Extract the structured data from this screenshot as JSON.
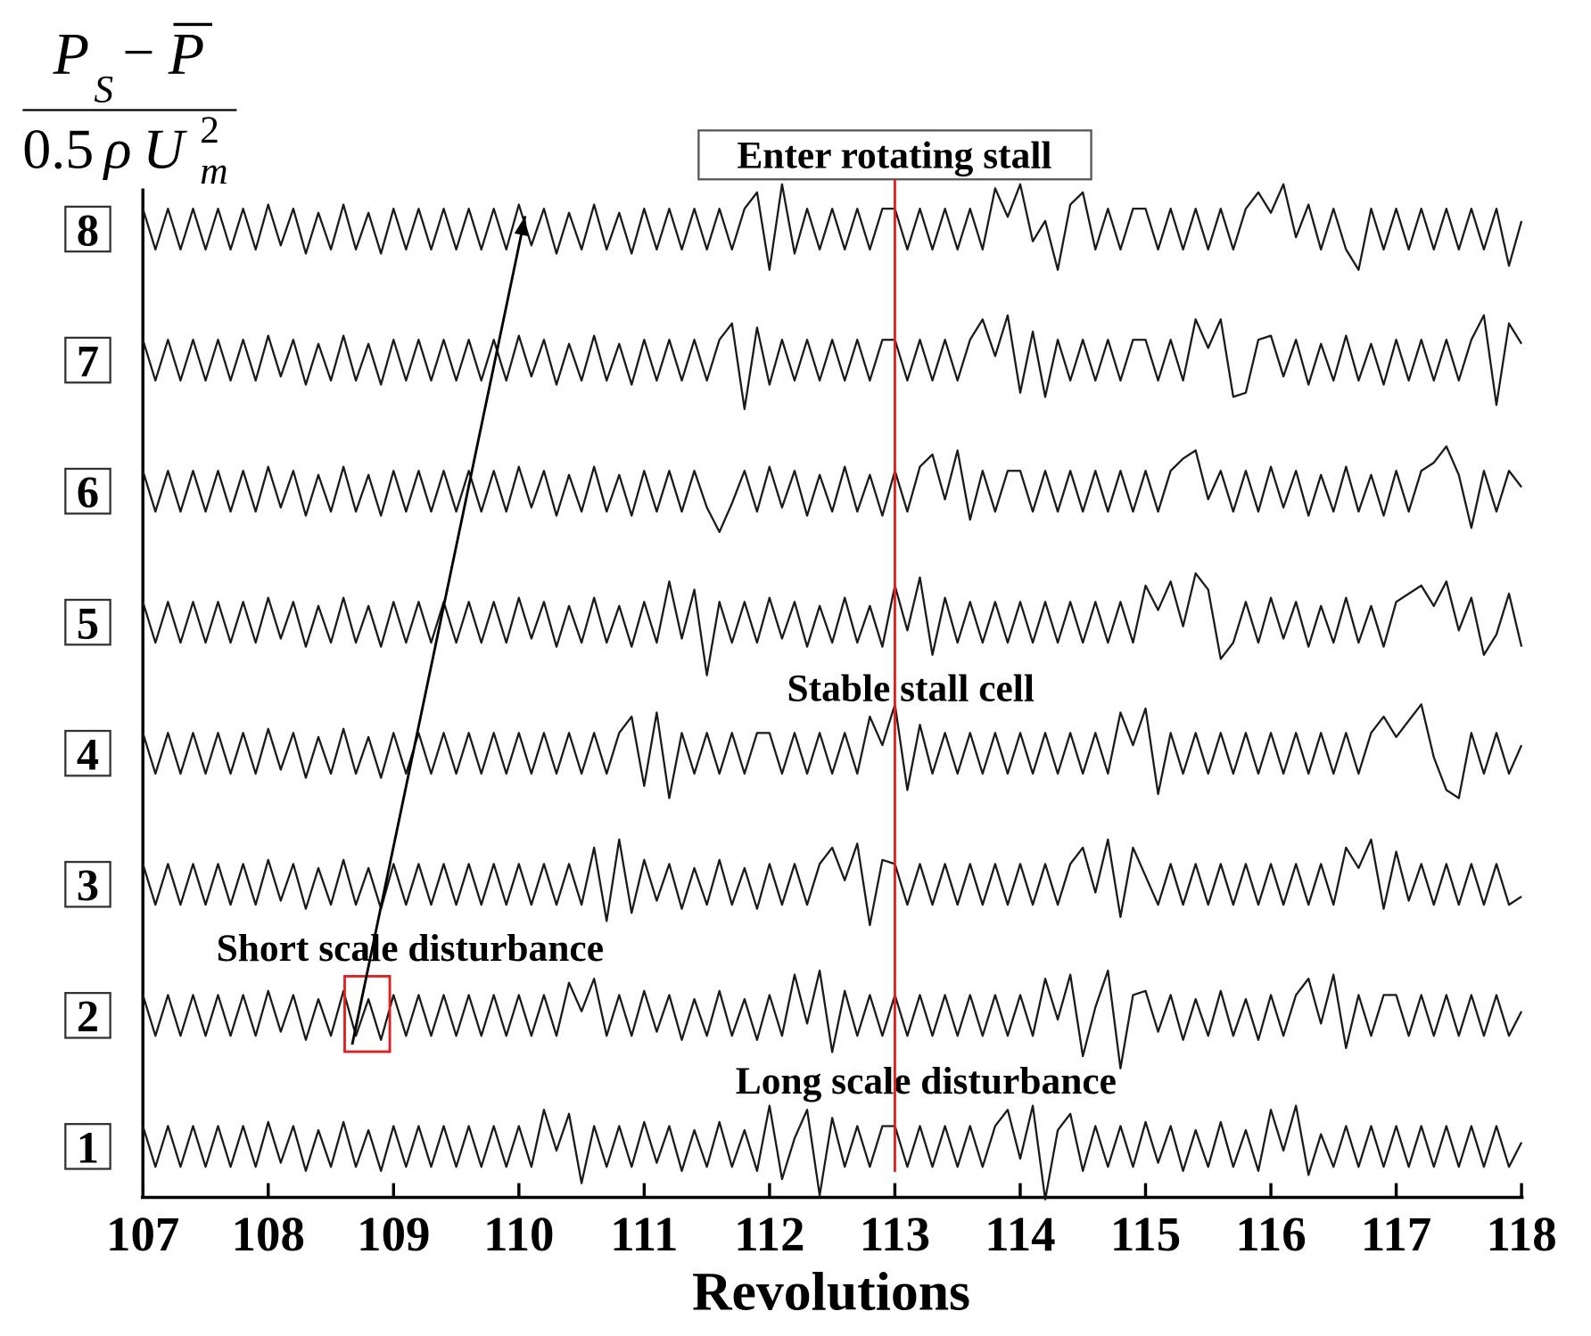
{
  "chart_data": {
    "type": "line",
    "ylabel": {
      "num": [
        "P",
        "S",
        "−",
        "P"
      ],
      "den": [
        "0.5",
        "ρ",
        "U",
        "2",
        "m"
      ]
    },
    "xlabel": "Revolutions",
    "xlim": [
      107,
      118
    ],
    "xticks": [
      107,
      108,
      109,
      110,
      111,
      112,
      113,
      114,
      115,
      116,
      117,
      118
    ],
    "x": [
      107,
      107.1,
      107.2,
      107.3,
      107.4,
      107.5,
      107.6,
      107.7,
      107.8,
      107.9,
      108,
      108.1,
      108.2,
      108.3,
      108.4,
      108.5,
      108.6,
      108.7,
      108.8,
      108.9,
      109,
      109.1,
      109.2,
      109.3,
      109.4,
      109.5,
      109.6,
      109.7,
      109.8,
      109.9,
      110,
      110.1,
      110.2,
      110.3,
      110.4,
      110.5,
      110.6,
      110.7,
      110.8,
      110.9,
      111,
      111.1,
      111.2,
      111.3,
      111.4,
      111.5,
      111.6,
      111.7,
      111.8,
      111.9,
      112,
      112.1,
      112.2,
      112.3,
      112.4,
      112.5,
      112.6,
      112.7,
      112.8,
      112.9,
      113,
      113.1,
      113.2,
      113.3,
      113.4,
      113.5,
      113.6,
      113.7,
      113.8,
      113.9,
      114,
      114.1,
      114.2,
      114.3,
      114.4,
      114.5,
      114.6,
      114.7,
      114.8,
      114.9,
      115,
      115.1,
      115.2,
      115.3,
      115.4,
      115.5,
      115.6,
      115.7,
      115.8,
      115.9,
      116,
      116.1,
      116.2,
      116.3,
      116.4,
      116.5,
      116.6,
      116.7,
      116.8,
      116.9,
      117,
      117.1,
      117.2,
      117.3,
      117.4,
      117.5,
      117.6,
      117.7,
      117.8,
      117.9,
      118
    ],
    "series": [
      {
        "name": "1",
        "color": "#1a1a1a",
        "values": [
          0.5,
          -0.5,
          0.5,
          -0.5,
          0.5,
          -0.5,
          0.5,
          -0.5,
          0.5,
          -0.5,
          0.6,
          -0.4,
          0.5,
          -0.6,
          0.4,
          -0.5,
          0.6,
          -0.5,
          0.4,
          -0.6,
          0.5,
          -0.5,
          0.5,
          -0.5,
          0.5,
          -0.5,
          0.5,
          -0.5,
          0.5,
          -0.5,
          0.5,
          -0.5,
          0.9,
          -0.1,
          0.8,
          -0.9,
          0.5,
          -0.5,
          0.5,
          -0.5,
          0.6,
          -0.4,
          0.5,
          -0.6,
          0.4,
          -0.5,
          0.6,
          -0.5,
          0.4,
          -0.6,
          1.0,
          -0.8,
          0.2,
          0.9,
          -1.2,
          0.7,
          -0.5,
          0.5,
          -0.5,
          0.5,
          0.5,
          -0.5,
          0.5,
          -0.5,
          0.5,
          -0.5,
          0.5,
          -0.5,
          0.5,
          0.9,
          -0.3,
          1.0,
          -1.3,
          0.4,
          0.8,
          -0.6,
          0.5,
          -0.5,
          0.5,
          -0.5,
          0.6,
          -0.4,
          0.5,
          -0.6,
          0.4,
          -0.5,
          0.6,
          -0.5,
          0.4,
          -0.6,
          0.9,
          -0.1,
          1.0,
          -0.7,
          0.3,
          -0.5,
          0.5,
          -0.5,
          0.5,
          -0.5,
          0.5,
          -0.5,
          0.5,
          -0.5,
          0.5,
          -0.5,
          0.5,
          -0.5,
          0.5,
          -0.5,
          0.1
        ]
      },
      {
        "name": "2",
        "color": "#1a1a1a",
        "values": [
          0.5,
          -0.5,
          0.5,
          -0.5,
          0.5,
          -0.5,
          0.5,
          -0.5,
          0.5,
          -0.5,
          0.6,
          -0.4,
          0.5,
          -0.6,
          0.4,
          -0.5,
          0.6,
          -0.5,
          0.4,
          -0.6,
          0.5,
          -0.5,
          0.5,
          -0.5,
          0.5,
          -0.5,
          0.5,
          -0.5,
          0.5,
          -0.5,
          0.5,
          -0.5,
          0.5,
          -0.5,
          0.8,
          0.1,
          0.9,
          -0.5,
          0.5,
          -0.5,
          0.6,
          -0.4,
          0.5,
          -0.6,
          0.4,
          -0.5,
          0.6,
          -0.5,
          0.4,
          -0.6,
          0.5,
          -0.5,
          1.0,
          -0.2,
          1.1,
          -0.9,
          0.6,
          -0.5,
          0.5,
          -0.5,
          0.5,
          -0.5,
          0.5,
          -0.5,
          0.5,
          -0.5,
          0.5,
          -0.5,
          0.5,
          -0.5,
          0.5,
          -0.5,
          0.9,
          -0.1,
          1.0,
          -1.0,
          0.2,
          1.1,
          -1.3,
          0.5,
          0.6,
          -0.4,
          0.5,
          -0.6,
          0.4,
          -0.5,
          0.6,
          -0.5,
          0.4,
          -0.6,
          0.5,
          -0.5,
          0.5,
          0.9,
          -0.2,
          1.0,
          -0.8,
          0.5,
          -0.5,
          0.5,
          0.5,
          -0.5,
          0.5,
          -0.5,
          0.5,
          -0.5,
          0.5,
          -0.5,
          0.5,
          -0.5,
          0.1
        ]
      },
      {
        "name": "3",
        "color": "#1a1a1a",
        "values": [
          0.5,
          -0.5,
          0.5,
          -0.5,
          0.5,
          -0.5,
          0.5,
          -0.5,
          0.5,
          -0.5,
          0.6,
          -0.4,
          0.5,
          -0.6,
          0.4,
          -0.5,
          0.6,
          -0.5,
          0.4,
          -0.6,
          0.5,
          -0.5,
          0.5,
          -0.5,
          0.5,
          -0.5,
          0.5,
          -0.5,
          0.5,
          -0.5,
          0.5,
          -0.5,
          0.5,
          -0.5,
          0.5,
          -0.5,
          0.9,
          -0.9,
          1.1,
          -0.7,
          0.6,
          -0.4,
          0.5,
          -0.6,
          0.4,
          -0.5,
          0.6,
          -0.5,
          0.4,
          -0.6,
          0.5,
          -0.5,
          0.5,
          -0.5,
          0.5,
          0.9,
          0.1,
          1.0,
          -1.0,
          0.6,
          0.5,
          -0.5,
          0.5,
          -0.5,
          0.5,
          -0.5,
          0.5,
          -0.5,
          0.5,
          -0.5,
          0.5,
          -0.5,
          0.5,
          -0.5,
          0.5,
          0.9,
          -0.2,
          1.1,
          -0.8,
          0.9,
          0.2,
          -0.5,
          0.5,
          -0.5,
          0.5,
          -0.5,
          0.5,
          -0.5,
          0.5,
          -0.5,
          0.5,
          -0.5,
          0.5,
          -0.5,
          0.5,
          -0.5,
          0.9,
          0.4,
          1.1,
          -0.6,
          0.8,
          -0.4,
          0.5,
          -0.5,
          0.5,
          -0.5,
          0.5,
          -0.5,
          0.5,
          -0.5,
          -0.3
        ]
      },
      {
        "name": "4",
        "color": "#1a1a1a",
        "values": [
          0.5,
          -0.5,
          0.5,
          -0.5,
          0.5,
          -0.5,
          0.5,
          -0.5,
          0.5,
          -0.5,
          0.6,
          -0.4,
          0.5,
          -0.6,
          0.4,
          -0.5,
          0.6,
          -0.5,
          0.4,
          -0.6,
          0.5,
          -0.5,
          0.5,
          -0.5,
          0.5,
          -0.5,
          0.5,
          -0.5,
          0.5,
          -0.5,
          0.5,
          -0.5,
          0.5,
          -0.5,
          0.5,
          -0.5,
          0.5,
          -0.5,
          0.5,
          0.9,
          -0.8,
          1.0,
          -1.1,
          0.5,
          -0.5,
          0.5,
          -0.5,
          0.5,
          -0.5,
          0.5,
          0.5,
          -0.5,
          0.5,
          -0.5,
          0.5,
          -0.5,
          0.5,
          -0.5,
          0.9,
          0.2,
          1.2,
          -0.9,
          0.7,
          -0.5,
          0.5,
          -0.5,
          0.5,
          -0.5,
          0.5,
          -0.5,
          0.5,
          -0.5,
          0.5,
          -0.5,
          0.5,
          -0.5,
          0.5,
          -0.5,
          1.0,
          0.2,
          1.1,
          -1.0,
          0.5,
          -0.5,
          0.5,
          -0.5,
          0.5,
          -0.5,
          0.5,
          -0.5,
          0.5,
          -0.5,
          0.5,
          -0.5,
          0.5,
          -0.5,
          0.5,
          -0.5,
          0.5,
          0.9,
          0.4,
          0.8,
          1.2,
          -0.1,
          -0.9,
          -1.1,
          0.5,
          -0.5,
          0.5,
          -0.5,
          0.2
        ]
      },
      {
        "name": "5",
        "color": "#1a1a1a",
        "values": [
          0.5,
          -0.5,
          0.5,
          -0.5,
          0.5,
          -0.5,
          0.5,
          -0.5,
          0.5,
          -0.5,
          0.6,
          -0.4,
          0.5,
          -0.6,
          0.4,
          -0.5,
          0.6,
          -0.5,
          0.4,
          -0.6,
          0.5,
          -0.5,
          0.5,
          -0.5,
          0.5,
          -0.5,
          0.5,
          -0.5,
          0.5,
          -0.5,
          0.6,
          -0.4,
          0.5,
          -0.6,
          0.4,
          -0.5,
          0.6,
          -0.5,
          0.4,
          -0.6,
          0.5,
          -0.5,
          1.0,
          -0.4,
          0.8,
          -1.3,
          0.5,
          -0.5,
          0.5,
          -0.5,
          0.6,
          -0.4,
          0.5,
          -0.6,
          0.4,
          -0.5,
          0.6,
          -0.5,
          0.4,
          -0.6,
          0.9,
          -0.2,
          1.1,
          -0.8,
          0.6,
          -0.5,
          0.5,
          -0.5,
          0.5,
          -0.5,
          0.5,
          -0.5,
          0.5,
          -0.5,
          0.5,
          -0.5,
          0.5,
          -0.5,
          0.5,
          -0.5,
          0.9,
          0.3,
          1.0,
          -0.1,
          1.2,
          0.8,
          -0.9,
          -0.5,
          0.5,
          -0.5,
          0.6,
          -0.4,
          0.5,
          -0.6,
          0.4,
          -0.5,
          0.6,
          -0.5,
          0.4,
          -0.6,
          0.5,
          0.7,
          0.9,
          0.4,
          1.0,
          -0.2,
          0.6,
          -0.8,
          -0.3,
          0.7,
          -0.6
        ]
      },
      {
        "name": "6",
        "color": "#1a1a1a",
        "values": [
          0.5,
          -0.5,
          0.5,
          -0.5,
          0.5,
          -0.5,
          0.5,
          -0.5,
          0.5,
          -0.5,
          0.6,
          -0.4,
          0.5,
          -0.6,
          0.4,
          -0.5,
          0.6,
          -0.5,
          0.4,
          -0.6,
          0.5,
          -0.5,
          0.5,
          -0.5,
          0.5,
          -0.5,
          0.5,
          -0.5,
          0.5,
          -0.5,
          0.6,
          -0.4,
          0.5,
          -0.6,
          0.4,
          -0.5,
          0.6,
          -0.5,
          0.4,
          -0.6,
          0.5,
          -0.5,
          0.5,
          -0.5,
          0.5,
          -0.4,
          -1.0,
          -0.3,
          0.5,
          -0.5,
          0.6,
          -0.4,
          0.5,
          -0.6,
          0.4,
          -0.5,
          0.6,
          -0.5,
          0.4,
          -0.6,
          0.5,
          -0.5,
          0.6,
          0.9,
          -0.2,
          1.0,
          -0.7,
          0.5,
          -0.5,
          0.5,
          0.5,
          -0.5,
          0.5,
          -0.5,
          0.5,
          -0.5,
          0.5,
          -0.5,
          0.5,
          -0.5,
          0.5,
          -0.5,
          0.5,
          0.8,
          1.0,
          -0.2,
          0.5,
          -0.5,
          0.5,
          -0.5,
          0.6,
          -0.4,
          0.5,
          -0.6,
          0.4,
          -0.5,
          0.6,
          -0.5,
          0.4,
          -0.6,
          0.5,
          -0.5,
          0.5,
          0.7,
          1.1,
          0.4,
          -0.9,
          0.5,
          -0.5,
          0.5,
          0.1
        ]
      },
      {
        "name": "7",
        "color": "#1a1a1a",
        "values": [
          0.5,
          -0.5,
          0.5,
          -0.5,
          0.5,
          -0.5,
          0.5,
          -0.5,
          0.5,
          -0.5,
          0.6,
          -0.4,
          0.5,
          -0.6,
          0.4,
          -0.5,
          0.6,
          -0.5,
          0.4,
          -0.6,
          0.5,
          -0.5,
          0.5,
          -0.5,
          0.5,
          -0.5,
          0.5,
          -0.5,
          0.5,
          -0.5,
          0.6,
          -0.4,
          0.5,
          -0.6,
          0.4,
          -0.5,
          0.6,
          -0.5,
          0.4,
          -0.6,
          0.5,
          -0.5,
          0.5,
          -0.5,
          0.5,
          -0.5,
          0.5,
          0.9,
          -1.2,
          0.8,
          -0.6,
          0.5,
          -0.5,
          0.5,
          -0.5,
          0.5,
          -0.5,
          0.5,
          -0.5,
          0.5,
          0.5,
          -0.5,
          0.5,
          -0.5,
          0.5,
          -0.5,
          0.5,
          1.0,
          0.1,
          1.1,
          -0.8,
          0.7,
          -0.9,
          0.5,
          -0.5,
          0.5,
          -0.5,
          0.5,
          -0.5,
          0.5,
          0.5,
          -0.5,
          0.5,
          -0.5,
          1.0,
          0.3,
          1.0,
          -0.9,
          -0.8,
          0.5,
          0.6,
          -0.4,
          0.5,
          -0.6,
          0.4,
          -0.5,
          0.6,
          -0.5,
          0.4,
          -0.6,
          0.5,
          -0.5,
          0.5,
          -0.5,
          0.5,
          -0.5,
          0.5,
          1.1,
          -1.1,
          0.9,
          0.4
        ]
      },
      {
        "name": "8",
        "color": "#1a1a1a",
        "values": [
          0.5,
          -0.5,
          0.5,
          -0.5,
          0.5,
          -0.5,
          0.5,
          -0.5,
          0.5,
          -0.5,
          0.6,
          -0.4,
          0.5,
          -0.6,
          0.4,
          -0.5,
          0.6,
          -0.5,
          0.4,
          -0.6,
          0.5,
          -0.5,
          0.5,
          -0.5,
          0.5,
          -0.5,
          0.5,
          -0.5,
          0.5,
          -0.5,
          0.6,
          -0.4,
          0.5,
          -0.6,
          0.4,
          -0.5,
          0.6,
          -0.5,
          0.4,
          -0.6,
          0.5,
          -0.5,
          0.5,
          -0.5,
          0.5,
          -0.5,
          0.5,
          -0.5,
          0.5,
          0.9,
          -1.0,
          1.1,
          -0.6,
          0.5,
          -0.5,
          0.5,
          -0.5,
          0.5,
          -0.5,
          0.5,
          0.5,
          -0.5,
          0.5,
          -0.5,
          0.5,
          -0.5,
          0.5,
          -0.5,
          1.0,
          0.3,
          1.1,
          -0.3,
          0.2,
          -1.0,
          0.6,
          0.9,
          -0.5,
          0.5,
          -0.5,
          0.5,
          0.5,
          -0.5,
          0.5,
          -0.5,
          0.5,
          -0.5,
          0.5,
          -0.5,
          0.5,
          0.9,
          0.4,
          1.1,
          -0.2,
          0.6,
          -0.5,
          0.5,
          -0.5,
          -1.0,
          0.5,
          -0.5,
          0.5,
          -0.5,
          0.5,
          -0.5,
          0.5,
          -0.5,
          0.5,
          -0.5,
          0.5,
          -0.9,
          0.2
        ]
      }
    ],
    "annotations": {
      "enter": "Enter rotating stall",
      "stable": "Stable stall cell",
      "short": "Short scale disturbance",
      "long": "Long scale disturbance"
    },
    "stall_line": {
      "x": 113,
      "color": "#e02020"
    },
    "highlight_box": {
      "x": [
        108.61,
        108.97
      ],
      "color": "#e02020"
    },
    "arrow": {
      "x": [
        108.67,
        110.05
      ]
    }
  }
}
